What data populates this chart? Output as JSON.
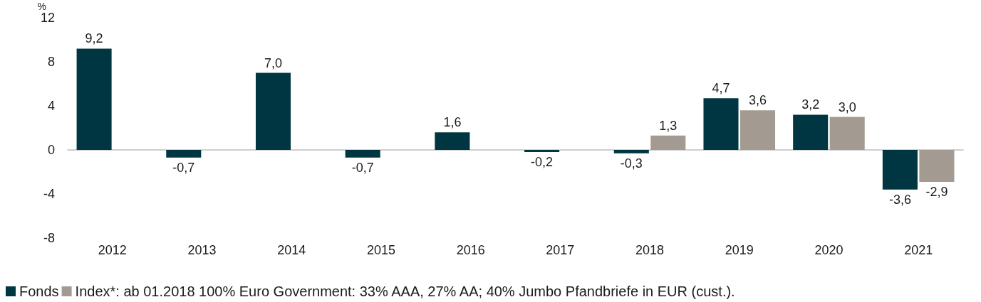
{
  "chart_data": {
    "type": "bar",
    "ylabel": "%",
    "categories": [
      "2012",
      "2013",
      "2014",
      "2015",
      "2016",
      "2017",
      "2018",
      "2019",
      "2020",
      "2021"
    ],
    "series": [
      {
        "name": "Fonds",
        "color": "#003641",
        "values": [
          9.2,
          -0.7,
          7.0,
          -0.7,
          1.6,
          -0.2,
          -0.3,
          4.7,
          3.2,
          -3.6
        ],
        "value_labels": [
          "9,2",
          "-0,7",
          "7,0",
          "-0,7",
          "1,6",
          "-0,2",
          "-0,3",
          "4,7",
          "3,2",
          "-3,6"
        ]
      },
      {
        "name": "Index*: ab 01.2018 100% Euro Government: 33% AAA, 27% AA; 40% Jumbo Pfandbriefe in EUR (cust.).",
        "color": "#a39b91",
        "values": [
          null,
          null,
          null,
          null,
          null,
          null,
          1.3,
          3.6,
          3.0,
          -2.9
        ],
        "value_labels": [
          null,
          null,
          null,
          null,
          null,
          null,
          "1,3",
          "3,6",
          "3,0",
          "-2,9"
        ]
      }
    ],
    "ylim": [
      -8,
      12
    ],
    "yticks": [
      -8,
      -4,
      0,
      4,
      8,
      12
    ],
    "legend": "bottom"
  }
}
